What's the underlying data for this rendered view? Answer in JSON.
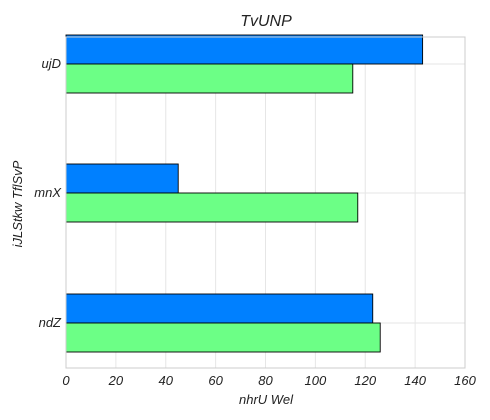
{
  "chart_data": {
    "type": "bar",
    "orientation": "horizontal",
    "title": "TvUNP",
    "xlabel": "nhrU Wel",
    "ylabel": "iJLStkw TflSvP",
    "categories": [
      "ujD",
      "mnX",
      "ndZ"
    ],
    "series": [
      {
        "color": "#0080ff",
        "values": [
          143,
          45,
          123
        ]
      },
      {
        "color": "#6cff86",
        "values": [
          115,
          117,
          126
        ]
      }
    ],
    "xlim": [
      0,
      160
    ],
    "xticks": [
      0,
      20,
      40,
      60,
      80,
      100,
      120,
      140,
      160
    ],
    "grid": true,
    "legend": false
  }
}
